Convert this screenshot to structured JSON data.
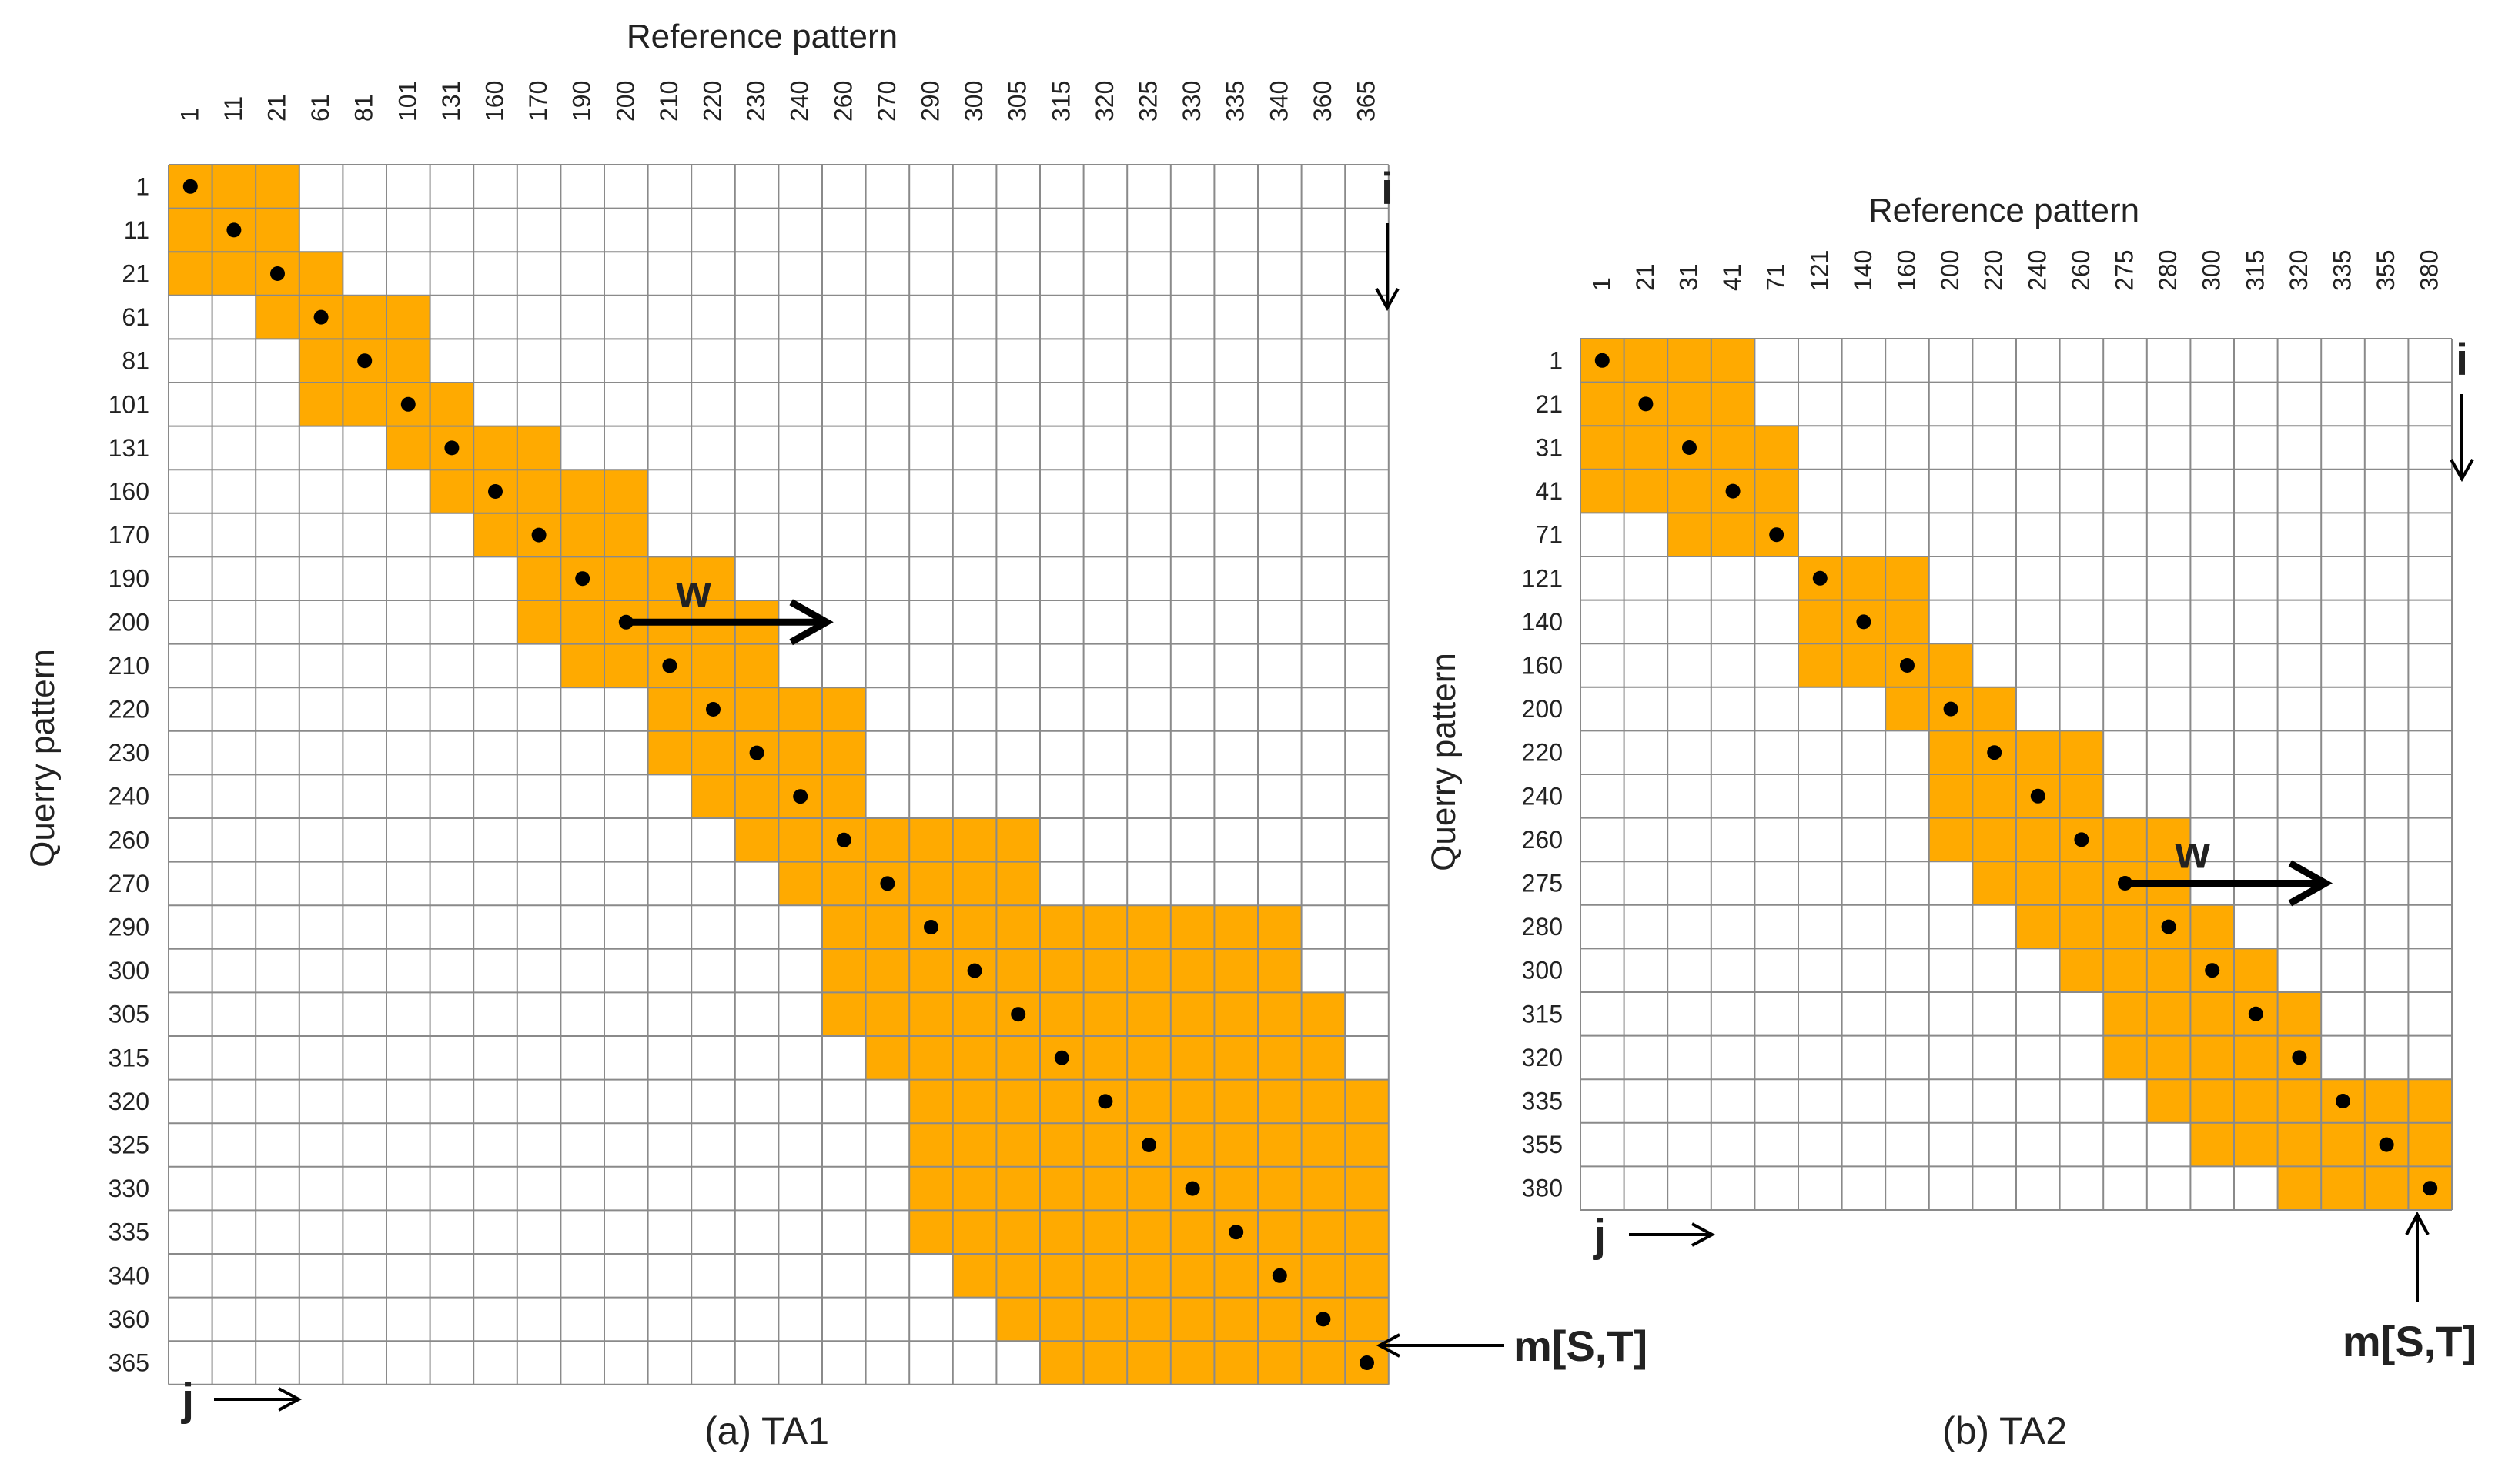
{
  "figure": {
    "panels": [
      {
        "id": "a",
        "caption": "(a) TA1",
        "x_axis_title": "Reference pattern",
        "y_axis_title": "Querry pattern",
        "ref_ticks": [
          "1",
          "11",
          "21",
          "61",
          "81",
          "101",
          "131",
          "160",
          "170",
          "190",
          "200",
          "210",
          "220",
          "230",
          "240",
          "260",
          "270",
          "290",
          "300",
          "305",
          "315",
          "320",
          "325",
          "330",
          "335",
          "340",
          "360",
          "365"
        ],
        "query_ticks": [
          "1",
          "11",
          "21",
          "61",
          "81",
          "101",
          "131",
          "160",
          "170",
          "190",
          "200",
          "210",
          "220",
          "230",
          "240",
          "260",
          "270",
          "290",
          "300",
          "305",
          "315",
          "320",
          "325",
          "330",
          "335",
          "340",
          "360",
          "365"
        ],
        "band": [
          [
            0,
            2
          ],
          [
            0,
            2
          ],
          [
            0,
            3
          ],
          [
            2,
            5
          ],
          [
            3,
            5
          ],
          [
            3,
            6
          ],
          [
            5,
            8
          ],
          [
            6,
            10
          ],
          [
            7,
            10
          ],
          [
            8,
            12
          ],
          [
            8,
            13
          ],
          [
            9,
            13
          ],
          [
            11,
            15
          ],
          [
            11,
            15
          ],
          [
            12,
            15
          ],
          [
            13,
            19
          ],
          [
            14,
            19
          ],
          [
            15,
            25
          ],
          [
            15,
            25
          ],
          [
            15,
            26
          ],
          [
            16,
            26
          ],
          [
            17,
            27
          ],
          [
            17,
            27
          ],
          [
            17,
            27
          ],
          [
            17,
            27
          ],
          [
            18,
            27
          ],
          [
            19,
            27
          ],
          [
            20,
            27
          ]
        ],
        "path": [
          [
            0,
            0
          ],
          [
            1,
            1
          ],
          [
            2,
            2
          ],
          [
            3,
            3
          ],
          [
            4,
            4
          ],
          [
            5,
            5
          ],
          [
            6,
            6
          ],
          [
            7,
            7
          ],
          [
            8,
            8
          ],
          [
            9,
            9
          ],
          [
            10,
            10
          ],
          [
            11,
            11
          ],
          [
            12,
            12
          ],
          [
            13,
            13
          ],
          [
            14,
            14
          ],
          [
            15,
            15
          ],
          [
            16,
            16
          ],
          [
            17,
            17
          ],
          [
            18,
            18
          ],
          [
            19,
            19
          ],
          [
            20,
            20
          ],
          [
            21,
            21
          ],
          [
            22,
            22
          ],
          [
            23,
            23
          ],
          [
            24,
            24
          ],
          [
            25,
            25
          ],
          [
            26,
            26
          ],
          [
            27,
            27
          ]
        ],
        "window_label": "w",
        "window_row": 10,
        "i_label": "i",
        "j_label": "j",
        "end_label": "m[S,T]"
      },
      {
        "id": "b",
        "caption": "(b) TA2",
        "x_axis_title": "Reference pattern",
        "y_axis_title": "Querry pattern",
        "ref_ticks": [
          "1",
          "21",
          "31",
          "41",
          "71",
          "121",
          "140",
          "160",
          "200",
          "220",
          "240",
          "260",
          "275",
          "280",
          "300",
          "315",
          "320",
          "335",
          "355",
          "380"
        ],
        "query_ticks": [
          "1",
          "21",
          "31",
          "41",
          "71",
          "121",
          "140",
          "160",
          "200",
          "220",
          "240",
          "260",
          "275",
          "280",
          "300",
          "315",
          "320",
          "335",
          "355",
          "380"
        ],
        "band": [
          [
            0,
            3
          ],
          [
            0,
            3
          ],
          [
            0,
            4
          ],
          [
            0,
            4
          ],
          [
            2,
            4
          ],
          [
            5,
            7
          ],
          [
            5,
            7
          ],
          [
            5,
            8
          ],
          [
            7,
            9
          ],
          [
            8,
            11
          ],
          [
            8,
            11
          ],
          [
            8,
            13
          ],
          [
            9,
            13
          ],
          [
            10,
            14
          ],
          [
            11,
            15
          ],
          [
            12,
            16
          ],
          [
            12,
            16
          ],
          [
            13,
            19
          ],
          [
            14,
            19
          ],
          [
            16,
            19
          ]
        ],
        "path": [
          [
            0,
            0
          ],
          [
            1,
            1
          ],
          [
            2,
            2
          ],
          [
            3,
            3
          ],
          [
            4,
            4
          ],
          [
            5,
            5
          ],
          [
            6,
            6
          ],
          [
            7,
            7
          ],
          [
            8,
            8
          ],
          [
            9,
            9
          ],
          [
            10,
            10
          ],
          [
            11,
            11
          ],
          [
            12,
            12
          ],
          [
            13,
            13
          ],
          [
            14,
            14
          ],
          [
            15,
            15
          ],
          [
            16,
            16
          ],
          [
            17,
            17
          ],
          [
            18,
            18
          ],
          [
            19,
            19
          ]
        ],
        "window_label": "w",
        "window_row": 12,
        "i_label": "i",
        "j_label": "j",
        "end_label": "m[S,T]"
      }
    ]
  },
  "colors": {
    "band": "#FFAA00",
    "grid": "#8a8a8a",
    "dot": "#000000",
    "text": "#222222"
  }
}
